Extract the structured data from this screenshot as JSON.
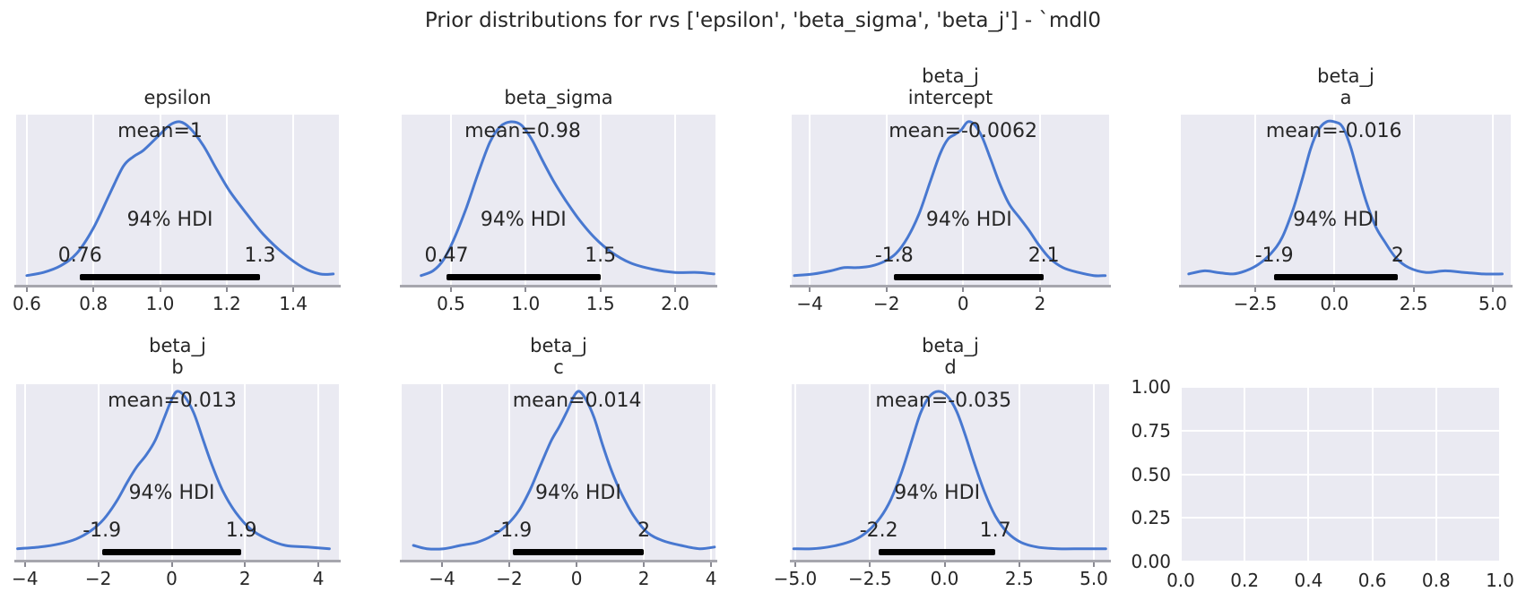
{
  "chart_data": {
    "type": "line",
    "subtype": "kde-prior-grid",
    "title": "Prior distributions for rvs ['epsilon', 'beta_sigma', 'beta_j'] - `mdl0",
    "grid": "on",
    "colors": {
      "axes_background": "#eaeaf2",
      "gridline": "#ffffff",
      "kde_line": "#4878d0",
      "hdi_bar": "#000000",
      "text": "#262626",
      "spine": "#a6a6ad",
      "figure_background": "#ffffff"
    },
    "subplots": [
      {
        "name": "epsilon",
        "title_lines": [
          "epsilon"
        ],
        "mean": 1.0,
        "mean_label": "mean=1",
        "hdi_label": "94% HDI",
        "hdi_lower": 0.76,
        "hdi_upper": 1.3,
        "hdi_lower_label": "0.76",
        "hdi_upper_label": "1.3",
        "x_range": [
          0.568,
          1.537
        ],
        "x_ticks": [
          0.6,
          0.8,
          1.0,
          1.2,
          1.4
        ],
        "x_tick_labels": [
          "0.6",
          "0.8",
          "1.0",
          "1.2",
          "1.4"
        ],
        "curve": [
          [
            0.6,
            0.03
          ],
          [
            0.65,
            0.05
          ],
          [
            0.7,
            0.09
          ],
          [
            0.75,
            0.17
          ],
          [
            0.8,
            0.33
          ],
          [
            0.85,
            0.55
          ],
          [
            0.89,
            0.72
          ],
          [
            0.92,
            0.78
          ],
          [
            0.95,
            0.82
          ],
          [
            0.99,
            0.9
          ],
          [
            1.03,
            0.98
          ],
          [
            1.06,
            1.0
          ],
          [
            1.09,
            0.96
          ],
          [
            1.13,
            0.85
          ],
          [
            1.17,
            0.7
          ],
          [
            1.21,
            0.56
          ],
          [
            1.26,
            0.42
          ],
          [
            1.31,
            0.29
          ],
          [
            1.37,
            0.17
          ],
          [
            1.43,
            0.08
          ],
          [
            1.48,
            0.04
          ],
          [
            1.52,
            0.04
          ]
        ]
      },
      {
        "name": "beta_sigma",
        "title_lines": [
          "beta_sigma"
        ],
        "mean": 0.98,
        "mean_label": "mean=0.98",
        "hdi_label": "94% HDI",
        "hdi_lower": 0.47,
        "hdi_upper": 1.5,
        "hdi_lower_label": "0.47",
        "hdi_upper_label": "1.5",
        "x_range": [
          0.17,
          2.27
        ],
        "x_ticks": [
          0.5,
          1.0,
          1.5,
          2.0
        ],
        "x_tick_labels": [
          "0.5",
          "1.0",
          "1.5",
          "2.0"
        ],
        "curve": [
          [
            0.3,
            0.03
          ],
          [
            0.38,
            0.06
          ],
          [
            0.45,
            0.13
          ],
          [
            0.52,
            0.26
          ],
          [
            0.6,
            0.45
          ],
          [
            0.68,
            0.67
          ],
          [
            0.76,
            0.87
          ],
          [
            0.83,
            0.97
          ],
          [
            0.9,
            1.0
          ],
          [
            0.97,
            0.98
          ],
          [
            1.04,
            0.89
          ],
          [
            1.11,
            0.76
          ],
          [
            1.19,
            0.62
          ],
          [
            1.27,
            0.5
          ],
          [
            1.36,
            0.38
          ],
          [
            1.46,
            0.27
          ],
          [
            1.57,
            0.18
          ],
          [
            1.7,
            0.11
          ],
          [
            1.85,
            0.07
          ],
          [
            2.0,
            0.05
          ],
          [
            2.15,
            0.05
          ],
          [
            2.26,
            0.04
          ]
        ]
      },
      {
        "name": "beta_j_intercept",
        "title_lines": [
          "beta_j",
          "intercept"
        ],
        "mean": -0.0062,
        "mean_label": "mean=-0.0062",
        "hdi_label": "94% HDI",
        "hdi_lower": -1.8,
        "hdi_upper": 2.1,
        "hdi_lower_label": "-1.8",
        "hdi_upper_label": "2.1",
        "x_range": [
          -4.47,
          3.8
        ],
        "x_ticks": [
          -4,
          -2,
          0,
          2
        ],
        "x_tick_labels": [
          "−4",
          "−2",
          "0",
          "2"
        ],
        "curve": [
          [
            -4.4,
            0.03
          ],
          [
            -3.9,
            0.04
          ],
          [
            -3.45,
            0.06
          ],
          [
            -3.1,
            0.08
          ],
          [
            -2.75,
            0.08
          ],
          [
            -2.4,
            0.09
          ],
          [
            -2.05,
            0.12
          ],
          [
            -1.75,
            0.17
          ],
          [
            -1.45,
            0.27
          ],
          [
            -1.15,
            0.42
          ],
          [
            -0.85,
            0.63
          ],
          [
            -0.6,
            0.8
          ],
          [
            -0.4,
            0.89
          ],
          [
            -0.22,
            0.92
          ],
          [
            -0.05,
            0.95
          ],
          [
            0.12,
            1.0
          ],
          [
            0.3,
            0.98
          ],
          [
            0.5,
            0.9
          ],
          [
            0.72,
            0.76
          ],
          [
            0.95,
            0.61
          ],
          [
            1.2,
            0.48
          ],
          [
            1.45,
            0.4
          ],
          [
            1.7,
            0.32
          ],
          [
            1.95,
            0.23
          ],
          [
            2.25,
            0.14
          ],
          [
            2.6,
            0.08
          ],
          [
            3.0,
            0.05
          ],
          [
            3.4,
            0.03
          ],
          [
            3.7,
            0.03
          ]
        ]
      },
      {
        "name": "beta_j_a",
        "title_lines": [
          "beta_j",
          "a"
        ],
        "mean": -0.016,
        "mean_label": "mean=-0.016",
        "hdi_label": "94% HDI",
        "hdi_lower": -1.9,
        "hdi_upper": 2.0,
        "hdi_lower_label": "-1.9",
        "hdi_upper_label": "2",
        "x_range": [
          -4.85,
          5.57
        ],
        "x_ticks": [
          -2.5,
          0.0,
          2.5,
          5.0
        ],
        "x_tick_labels": [
          "−2.5",
          "0.0",
          "2.5",
          "5.0"
        ],
        "curve": [
          [
            -4.6,
            0.04
          ],
          [
            -4.1,
            0.06
          ],
          [
            -3.7,
            0.05
          ],
          [
            -3.2,
            0.04
          ],
          [
            -2.8,
            0.06
          ],
          [
            -2.4,
            0.1
          ],
          [
            -2.0,
            0.17
          ],
          [
            -1.65,
            0.27
          ],
          [
            -1.3,
            0.45
          ],
          [
            -1.0,
            0.65
          ],
          [
            -0.75,
            0.83
          ],
          [
            -0.5,
            0.95
          ],
          [
            -0.25,
            1.0
          ],
          [
            0.0,
            1.0
          ],
          [
            0.25,
            0.97
          ],
          [
            0.5,
            0.85
          ],
          [
            0.75,
            0.67
          ],
          [
            1.0,
            0.5
          ],
          [
            1.3,
            0.34
          ],
          [
            1.6,
            0.24
          ],
          [
            1.95,
            0.14
          ],
          [
            2.35,
            0.08
          ],
          [
            2.9,
            0.05
          ],
          [
            3.5,
            0.06
          ],
          [
            4.1,
            0.05
          ],
          [
            4.7,
            0.04
          ],
          [
            5.3,
            0.04
          ]
        ]
      },
      {
        "name": "beta_j_b",
        "title_lines": [
          "beta_j",
          "b"
        ],
        "mean": 0.013,
        "mean_label": "mean=0.013",
        "hdi_label": "94% HDI",
        "hdi_lower": -1.9,
        "hdi_upper": 1.9,
        "hdi_lower_label": "-1.9",
        "hdi_upper_label": "1.9",
        "x_range": [
          -4.24,
          4.56
        ],
        "x_ticks": [
          -4,
          -2,
          0,
          2,
          4
        ],
        "x_tick_labels": [
          "−4",
          "−2",
          "0",
          "2",
          "4"
        ],
        "curve": [
          [
            -4.2,
            0.04
          ],
          [
            -3.6,
            0.05
          ],
          [
            -3.05,
            0.07
          ],
          [
            -2.6,
            0.1
          ],
          [
            -2.2,
            0.15
          ],
          [
            -1.85,
            0.22
          ],
          [
            -1.5,
            0.33
          ],
          [
            -1.2,
            0.45
          ],
          [
            -0.95,
            0.54
          ],
          [
            -0.7,
            0.61
          ],
          [
            -0.45,
            0.7
          ],
          [
            -0.2,
            0.84
          ],
          [
            0.0,
            0.95
          ],
          [
            0.15,
            1.0
          ],
          [
            0.35,
            0.97
          ],
          [
            0.6,
            0.87
          ],
          [
            0.85,
            0.71
          ],
          [
            1.1,
            0.55
          ],
          [
            1.4,
            0.39
          ],
          [
            1.75,
            0.26
          ],
          [
            2.15,
            0.16
          ],
          [
            2.6,
            0.1
          ],
          [
            3.1,
            0.06
          ],
          [
            3.7,
            0.05
          ],
          [
            4.3,
            0.04
          ]
        ]
      },
      {
        "name": "beta_j_c",
        "title_lines": [
          "beta_j",
          "c"
        ],
        "mean": 0.014,
        "mean_label": "mean=0.014",
        "hdi_label": "94% HDI",
        "hdi_lower": -1.9,
        "hdi_upper": 2.0,
        "hdi_lower_label": "-1.9",
        "hdi_upper_label": "2",
        "x_range": [
          -5.2,
          4.13
        ],
        "x_ticks": [
          -4,
          -2,
          0,
          2,
          4
        ],
        "x_tick_labels": [
          "−4",
          "−2",
          "0",
          "2",
          "4"
        ],
        "curve": [
          [
            -4.85,
            0.06
          ],
          [
            -4.45,
            0.04
          ],
          [
            -3.95,
            0.04
          ],
          [
            -3.45,
            0.06
          ],
          [
            -2.95,
            0.08
          ],
          [
            -2.5,
            0.12
          ],
          [
            -2.1,
            0.18
          ],
          [
            -1.72,
            0.27
          ],
          [
            -1.38,
            0.4
          ],
          [
            -1.05,
            0.56
          ],
          [
            -0.75,
            0.7
          ],
          [
            -0.5,
            0.79
          ],
          [
            -0.28,
            0.88
          ],
          [
            -0.08,
            0.97
          ],
          [
            0.08,
            1.0
          ],
          [
            0.28,
            0.95
          ],
          [
            0.52,
            0.84
          ],
          [
            0.78,
            0.67
          ],
          [
            1.05,
            0.51
          ],
          [
            1.35,
            0.37
          ],
          [
            1.7,
            0.24
          ],
          [
            2.1,
            0.14
          ],
          [
            2.55,
            0.09
          ],
          [
            3.1,
            0.06
          ],
          [
            3.65,
            0.04
          ],
          [
            4.1,
            0.05
          ]
        ]
      },
      {
        "name": "beta_j_d",
        "title_lines": [
          "beta_j",
          "d"
        ],
        "mean": -0.035,
        "mean_label": "mean=-0.035",
        "hdi_label": "94% HDI",
        "hdi_lower": -2.2,
        "hdi_upper": 1.7,
        "hdi_lower_label": "-2.2",
        "hdi_upper_label": "1.7",
        "x_range": [
          -5.12,
          5.51
        ],
        "x_ticks": [
          -5.0,
          -2.5,
          0.0,
          2.5,
          5.0
        ],
        "x_tick_labels": [
          "−5.0",
          "−2.5",
          "0.0",
          "2.5",
          "5.0"
        ],
        "curve": [
          [
            -5.05,
            0.04
          ],
          [
            -4.45,
            0.04
          ],
          [
            -3.9,
            0.05
          ],
          [
            -3.4,
            0.07
          ],
          [
            -2.95,
            0.1
          ],
          [
            -2.55,
            0.15
          ],
          [
            -2.15,
            0.23
          ],
          [
            -1.8,
            0.34
          ],
          [
            -1.45,
            0.5
          ],
          [
            -1.1,
            0.7
          ],
          [
            -0.8,
            0.87
          ],
          [
            -0.5,
            0.97
          ],
          [
            -0.2,
            1.0
          ],
          [
            0.1,
            0.97
          ],
          [
            0.4,
            0.88
          ],
          [
            0.7,
            0.73
          ],
          [
            1.0,
            0.56
          ],
          [
            1.35,
            0.38
          ],
          [
            1.7,
            0.24
          ],
          [
            2.1,
            0.14
          ],
          [
            2.55,
            0.08
          ],
          [
            3.1,
            0.05
          ],
          [
            3.8,
            0.04
          ],
          [
            4.6,
            0.04
          ],
          [
            5.4,
            0.04
          ]
        ]
      },
      {
        "name": "empty",
        "title_lines": [],
        "empty": true,
        "x_range": [
          0.0,
          1.0
        ],
        "x_ticks": [
          0.0,
          0.2,
          0.4,
          0.6,
          0.8,
          1.0
        ],
        "x_tick_labels": [
          "0.0",
          "0.2",
          "0.4",
          "0.6",
          "0.8",
          "1.0"
        ],
        "y_range": [
          0.0,
          1.0
        ],
        "y_ticks": [
          0.0,
          0.25,
          0.5,
          0.75,
          1.0
        ],
        "y_tick_labels": [
          "0.00",
          "0.25",
          "0.50",
          "0.75",
          "1.00"
        ]
      }
    ]
  }
}
